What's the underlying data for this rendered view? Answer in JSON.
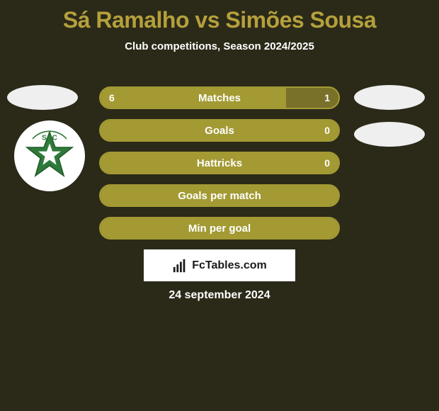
{
  "background_color": "#2b2918",
  "title_color": "#b4a03c",
  "text_color": "#ffffff",
  "pill_light_color": "#efefef",
  "logo_bg_color": "#ffffff",
  "logo_star_color": "#2f7a3a",
  "logo_text": "SCC",
  "header": {
    "title": "Sá Ramalho vs Simões Sousa",
    "subtitle": "Club competitions, Season 2024/2025"
  },
  "bars": {
    "track_color": "#797029",
    "fill_color": "#a39a34",
    "border_color": "#a39a34",
    "label_color": "#ffffff",
    "value_color": "#ffffff",
    "height": 32,
    "radius": 16,
    "gap": 14,
    "items": [
      {
        "label": "Matches",
        "left": "6",
        "right": "1",
        "fill_pct": 78
      },
      {
        "label": "Goals",
        "left": "",
        "right": "0",
        "fill_pct": 100
      },
      {
        "label": "Hattricks",
        "left": "",
        "right": "0",
        "fill_pct": 100
      },
      {
        "label": "Goals per match",
        "left": "",
        "right": "",
        "fill_pct": 100
      },
      {
        "label": "Min per goal",
        "left": "",
        "right": "",
        "fill_pct": 100
      }
    ]
  },
  "footer": {
    "brand": "FcTables.com",
    "box_bg": "#ffffff",
    "box_text": "#1a1a1a",
    "date": "24 september 2024"
  }
}
